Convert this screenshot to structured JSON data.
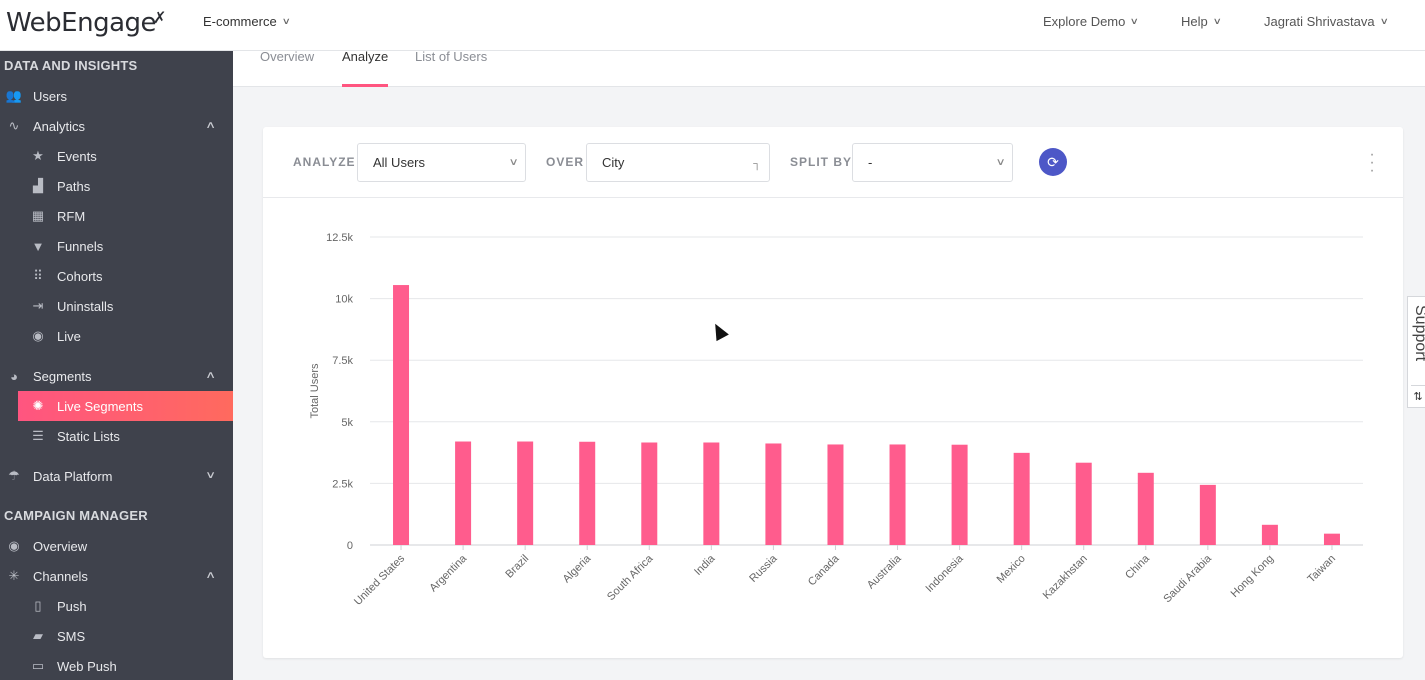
{
  "header": {
    "logo_text": "WebEngage",
    "project": "E-commerce",
    "explore_demo": "Explore Demo",
    "help": "Help",
    "user": "Jagrati Shrivastava"
  },
  "sidebar": {
    "section_data": "DATA AND INSIGHTS",
    "users": "Users",
    "analytics": "Analytics",
    "events": "Events",
    "paths": "Paths",
    "rfm": "RFM",
    "funnels": "Funnels",
    "cohorts": "Cohorts",
    "uninstalls": "Uninstalls",
    "live": "Live",
    "segments": "Segments",
    "live_segments": "Live Segments",
    "static_lists": "Static Lists",
    "data_platform": "Data Platform",
    "section_campaign": "CAMPAIGN MANAGER",
    "overview": "Overview",
    "channels": "Channels",
    "push": "Push",
    "sms": "SMS",
    "web_push": "Web Push"
  },
  "tabs": {
    "overview": "Overview",
    "analyze": "Analyze",
    "list_of_users": "List of Users"
  },
  "filters": {
    "analyze_label": "ANALYZE",
    "analyze_value": "All Users",
    "over_label": "OVER",
    "over_value": "City",
    "split_label": "SPLIT BY",
    "split_value": "-"
  },
  "support": {
    "label": "Support"
  },
  "colors": {
    "bar": "#ff5c8d",
    "accent": "#ff5580",
    "refresh": "#4d57c7"
  },
  "chart_data": {
    "type": "bar",
    "ylabel": "Total Users",
    "xlabel": "",
    "ylim": [
      0,
      12500
    ],
    "yticks": [
      0,
      2500,
      5000,
      7500,
      10000,
      12500
    ],
    "ytick_labels": [
      "0",
      "2.5k",
      "5k",
      "7.5k",
      "10k",
      "12.5k"
    ],
    "grid": true,
    "categories": [
      "United States",
      "Argentina",
      "Brazil",
      "Algeria",
      "South Africa",
      "India",
      "Russia",
      "Canada",
      "Australia",
      "Indonesia",
      "Mexico",
      "Kazakhstan",
      "China",
      "Saudi Arabia",
      "Hong Kong",
      "Taiwan"
    ],
    "values": [
      10550,
      4200,
      4200,
      4190,
      4160,
      4160,
      4120,
      4080,
      4080,
      4070,
      3740,
      3340,
      2930,
      2440,
      820,
      460
    ]
  }
}
